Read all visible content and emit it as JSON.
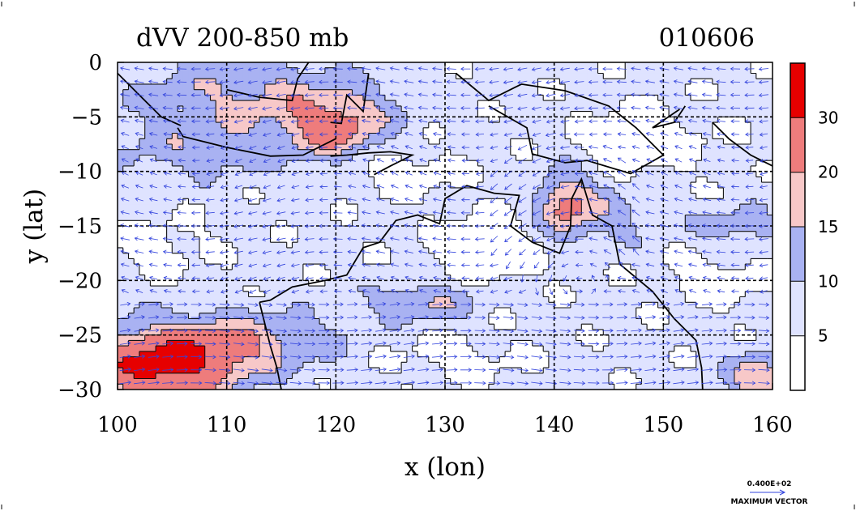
{
  "title": "dVV 200-850 mb",
  "date_label": "010606",
  "x_axis": {
    "label": "x (lon)",
    "ticks": [
      "100",
      "110",
      "120",
      "130",
      "140",
      "150",
      "160"
    ]
  },
  "y_axis": {
    "label": "y (lat)",
    "ticks": [
      "0",
      "−5",
      "−10",
      "−15",
      "−20",
      "−25",
      "−30"
    ]
  },
  "colorbar": {
    "ticks": [
      "5",
      "10",
      "15",
      "20",
      "30"
    ],
    "levels": [
      0,
      5,
      10,
      15,
      20,
      30
    ],
    "colors": [
      "#ffffff",
      "#dfe3ff",
      "#a9b2f2",
      "#f7c8c8",
      "#ee7c7c",
      "#e60000"
    ]
  },
  "vector_reference": {
    "value": "0.400E+02",
    "label": "MAXIMUM VECTOR"
  },
  "map_data": {
    "type": "filled-contour-with-vectors",
    "lon_range": [
      100,
      160
    ],
    "lat_range": [
      -30,
      0
    ],
    "grid_lines_lon": [
      110,
      120,
      130,
      140,
      150
    ],
    "grid_lines_lat": [
      -5,
      -10,
      -15,
      -20,
      -25
    ]
  }
}
